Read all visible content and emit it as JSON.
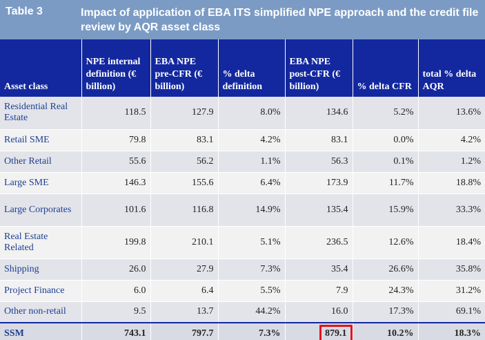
{
  "title": {
    "label": "Table 3",
    "text": "Impact of application of EBA ITS simplified NPE approach and the credit file review by AQR asset class"
  },
  "columns": [
    "Asset class",
    "NPE internal definition (€ billion)",
    "EBA NPE pre-CFR (€ billion)",
    "% delta definition",
    "EBA NPE post-CFR (€ billion)",
    "% delta CFR",
    "total % delta AQR"
  ],
  "rows": [
    [
      "Residential Real Estate",
      "118.5",
      "127.9",
      "8.0%",
      "134.6",
      "5.2%",
      "13.6%"
    ],
    [
      "Retail SME",
      "79.8",
      "83.1",
      "4.2%",
      "83.1",
      "0.0%",
      "4.2%"
    ],
    [
      "Other Retail",
      "55.6",
      "56.2",
      "1.1%",
      "56.3",
      "0.1%",
      "1.2%"
    ],
    [
      "Large SME",
      "146.3",
      "155.6",
      "6.4%",
      "173.9",
      "11.7%",
      "18.8%"
    ],
    [
      "Large Corporates",
      "101.6",
      "116.8",
      "14.9%",
      "135.4",
      "15.9%",
      "33.3%"
    ],
    [
      "Real Estate Related",
      "199.8",
      "210.1",
      "5.1%",
      "236.5",
      "12.6%",
      "18.4%"
    ],
    [
      "Shipping",
      "26.0",
      "27.9",
      "7.3%",
      "35.4",
      "26.6%",
      "35.8%"
    ],
    [
      "Project Finance",
      "6.0",
      "6.4",
      "5.5%",
      "7.9",
      "24.3%",
      "31.2%"
    ],
    [
      "Other non-retail",
      "9.5",
      "13.7",
      "44.2%",
      "16.0",
      "17.3%",
      "69.1%"
    ]
  ],
  "total": [
    "SSM",
    "743.1",
    "797.7",
    "7.3%",
    "879.1",
    "10.2%",
    "18.3%"
  ],
  "highlight_color": "#e0141e",
  "header_color": "#13289e",
  "title_bar_color": "#7b9bc4"
}
